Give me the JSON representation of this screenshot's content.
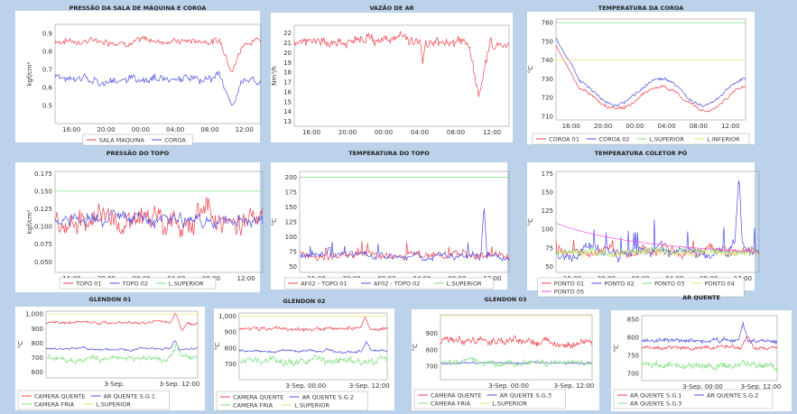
{
  "colors": {
    "red": "#f2424c",
    "blue": "#4f4fe3",
    "green": "#7fe07f",
    "yellow": "#ebe36a",
    "pink": "#ff4fd8"
  },
  "chart_data": [
    {
      "type": "line",
      "title": "PRESSÃO DA SALA DE MÁQUINA E COROA",
      "ylabel": "kgf/cm²",
      "ylim": [
        0.4,
        0.95
      ],
      "yticks": [
        "0.9",
        "0.8",
        "0.7",
        "0.6",
        "0.5"
      ],
      "xticks": [
        "16:00",
        "20:00",
        "00:00",
        "04:00",
        "08:00",
        "12:00"
      ],
      "series": [
        {
          "name": "SALA MAQUINA",
          "color": "red",
          "base": 0.86,
          "noise": 0.025,
          "events": [
            [
              0.86,
              0.06,
              -0.15
            ]
          ]
        },
        {
          "name": "COROA",
          "color": "blue",
          "base": 0.65,
          "noise": 0.03,
          "events": [
            [
              0.86,
              0.06,
              -0.14
            ]
          ]
        }
      ]
    },
    {
      "type": "line",
      "title": "VAZÃO DE AR",
      "ylabel": "Nm³/h",
      "ylim": [
        12.5,
        22.8
      ],
      "yticks": [
        "22",
        "21",
        "20",
        "19",
        "18",
        "17",
        "16",
        "15",
        "14",
        "13"
      ],
      "xticks": [
        "16:00",
        "20:00",
        "00:00",
        "04:00",
        "08:00",
        "12:00"
      ],
      "series": [
        {
          "name": "",
          "color": "red",
          "base": 21.2,
          "noise": 0.7,
          "events": [
            [
              0.86,
              0.05,
              -6.5
            ],
            [
              0.6,
              0.01,
              -2
            ]
          ]
        }
      ]
    },
    {
      "type": "line",
      "title": "TEMPERATURA DA COROA",
      "ylabel": "°C",
      "ylim": [
        708,
        762
      ],
      "yticks": [
        "760",
        "750",
        "740",
        "730",
        "720",
        "710"
      ],
      "xticks": [
        "16:00",
        "20:00",
        "00:00",
        "04:00",
        "08:00",
        "12:00"
      ],
      "series": [
        {
          "name": "COROA 01",
          "color": "red",
          "base": 716,
          "noise": 1.2,
          "wave": 6,
          "start": 748
        },
        {
          "name": "COROA 02",
          "color": "blue",
          "base": 719,
          "noise": 1.2,
          "wave": 7,
          "start": 752
        },
        {
          "name": "L.SUPERIOR",
          "color": "green",
          "base": 760,
          "noise": 0,
          "flat": true
        },
        {
          "name": "L.INFERIOR",
          "color": "yellow",
          "base": 740,
          "noise": 0,
          "flat": true
        }
      ]
    },
    {
      "type": "line",
      "title": "PRESSÃO DO TOPO",
      "ylabel": "kgf/cm²",
      "ylim": [
        0.035,
        0.178
      ],
      "yticks": [
        "0.175",
        "0.150",
        "0.125",
        "0.100",
        "0.075",
        "0.050"
      ],
      "xticks": [
        "16:00",
        "20:00",
        "00:00",
        "04:00",
        "08:00",
        "12:00"
      ],
      "series": [
        {
          "name": "TOPO 01",
          "color": "red",
          "base": 0.11,
          "noise": 0.022,
          "events": [
            [
              0.9,
              0.04,
              -0.03
            ]
          ]
        },
        {
          "name": "TOPO 02",
          "color": "blue",
          "base": 0.11,
          "noise": 0.012
        },
        {
          "name": "L.SUPERIOR",
          "color": "green",
          "base": 0.15,
          "noise": 0,
          "flat": true
        }
      ]
    },
    {
      "type": "line",
      "title": "TEMPERATURA DO TOPO",
      "ylabel": "°C",
      "ylim": [
        40,
        210
      ],
      "yticks": [
        "200",
        "175",
        "150",
        "125",
        "100",
        "75",
        "50"
      ],
      "xticks": [
        "16:00",
        "20:00",
        "00:00",
        "04:00",
        "08:00",
        "12:00"
      ],
      "series": [
        {
          "name": "AF02 - TOPO 01",
          "color": "red",
          "base": 70,
          "noise": 8,
          "spiky": 30
        },
        {
          "name": "AF02 - TOPO 02",
          "color": "blue",
          "base": 68,
          "noise": 7,
          "spiky": 25,
          "events": [
            [
              0.88,
              0.015,
              85
            ]
          ]
        },
        {
          "name": "L.SUPERIOR",
          "color": "green",
          "base": 200,
          "noise": 0,
          "flat": true
        }
      ]
    },
    {
      "type": "line",
      "title": "TEMPERATURA COLETOR PÓ",
      "ylabel": "°C",
      "ylim": [
        42,
        178
      ],
      "yticks": [
        "175",
        "150",
        "125",
        "100",
        "75",
        "50"
      ],
      "xticks": [
        "16:00",
        "20:00",
        "00:00",
        "04:00",
        "08:00",
        "12:00"
      ],
      "series": [
        {
          "name": "PONTO 01",
          "color": "red",
          "base": 72,
          "noise": 8,
          "spiky": 15
        },
        {
          "name": "PONTO 02",
          "color": "blue",
          "base": 70,
          "noise": 10,
          "spiky": 40,
          "events": [
            [
              0.9,
              0.02,
              90
            ]
          ]
        },
        {
          "name": "PONTO 03",
          "color": "green",
          "base": 70,
          "noise": 6
        },
        {
          "name": "PONTO 04",
          "color": "yellow",
          "base": 68,
          "noise": 5
        },
        {
          "name": "PONTO 05",
          "color": "pink",
          "base": 78,
          "noise": 3,
          "decay": 30
        }
      ]
    },
    {
      "type": "line",
      "title": "GLENDON 01",
      "ylabel": "°C",
      "ylim": [
        560,
        1020
      ],
      "yticks": [
        "1,000",
        "900",
        "800",
        "700",
        "600"
      ],
      "xticks": [
        "3-Sep.",
        "3-Sep. 12:00"
      ],
      "series": [
        {
          "name": "CAMERA QUENTE",
          "color": "red",
          "base": 940,
          "noise": 12,
          "events": [
            [
              0.85,
              0.03,
              60
            ],
            [
              0.9,
              0.03,
              -50
            ]
          ]
        },
        {
          "name": "AR QUENTE S.G.1",
          "color": "blue",
          "base": 760,
          "noise": 10,
          "events": [
            [
              0.85,
              0.03,
              60
            ]
          ]
        },
        {
          "name": "CAMERA FRIA",
          "color": "green",
          "base": 700,
          "noise": 25,
          "events": [
            [
              0.86,
              0.03,
              80
            ]
          ]
        },
        {
          "name": "L.SUPERIOR",
          "color": "yellow",
          "base": 1000,
          "noise": 0,
          "flat": true
        }
      ]
    },
    {
      "type": "line",
      "title": "GLENDON 02",
      "ylabel": "°C",
      "ylim": [
        600,
        1020
      ],
      "yticks": [
        "1,000",
        "900",
        "800",
        "700"
      ],
      "xticks": [
        "3-Sep. 00:00",
        "3-Sep. 12:00"
      ],
      "series": [
        {
          "name": "CAMERA QUENTE",
          "color": "red",
          "base": 920,
          "noise": 15,
          "events": [
            [
              0.85,
              0.03,
              70
            ]
          ]
        },
        {
          "name": "AR QUENTE S.G.2",
          "color": "blue",
          "base": 780,
          "noise": 10,
          "events": [
            [
              0.86,
              0.03,
              50
            ]
          ]
        },
        {
          "name": "CAMERA FRIA",
          "color": "green",
          "base": 720,
          "noise": 30
        },
        {
          "name": "L.SUPERIOR",
          "color": "yellow",
          "base": 1000,
          "noise": 0,
          "flat": true
        }
      ]
    },
    {
      "type": "line",
      "title": "GLENDON 03",
      "ylabel": "°C",
      "ylim": [
        620,
        1010
      ],
      "yticks": [
        "900",
        "800",
        "700"
      ],
      "xticks": [
        "3-Sep. 00:00",
        "3-Sep. 12:00"
      ],
      "series": [
        {
          "name": "CAMERA QUENTE",
          "color": "red",
          "base": 850,
          "noise": 30
        },
        {
          "name": "AR QUENTE S.G.3",
          "color": "blue",
          "base": 720,
          "noise": 8
        },
        {
          "name": "CAMERA FRIA",
          "color": "green",
          "base": 720,
          "noise": 20
        },
        {
          "name": "L.SUPERIOR",
          "color": "yellow",
          "base": 1000,
          "noise": 0,
          "flat": true
        }
      ]
    },
    {
      "type": "line",
      "title": "AR QUENTE",
      "ylabel": "°C",
      "ylim": [
        680,
        860
      ],
      "yticks": [
        "850",
        "800",
        "750",
        "700"
      ],
      "xticks": [
        "3-Sep. 00:00",
        "3-Sep. 12:00"
      ],
      "series": [
        {
          "name": "AR QUENTE S.G.1",
          "color": "red",
          "base": 770,
          "noise": 6,
          "events": [
            [
              0.78,
              0.05,
              35
            ]
          ]
        },
        {
          "name": "AR QUENTE S.G.2",
          "color": "blue",
          "base": 790,
          "noise": 8,
          "events": [
            [
              0.75,
              0.04,
              50
            ]
          ]
        },
        {
          "name": "AR QUENTE S.G.3",
          "color": "green",
          "base": 720,
          "noise": 12
        }
      ]
    }
  ]
}
